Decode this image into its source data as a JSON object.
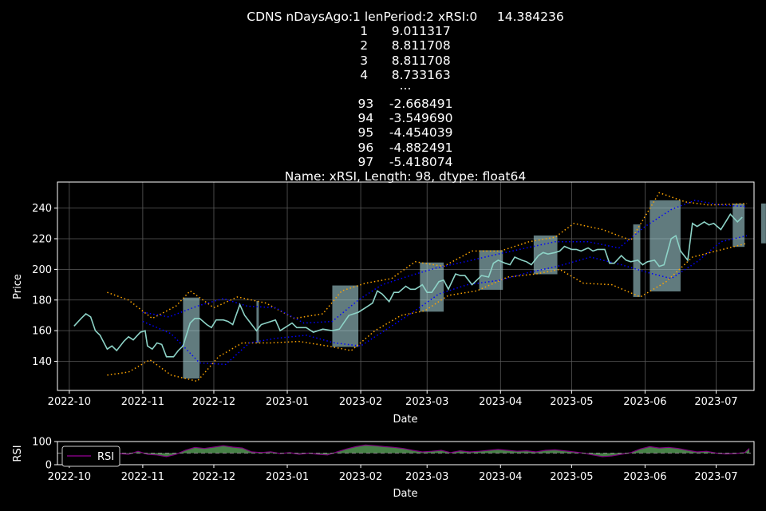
{
  "title": {
    "lines": [
      "CDNS nDaysAgo:1 lenPeriod:2 xRSI:0     14.384236",
      "1      9.011317",
      "2      8.811708",
      "3      8.811708",
      "4      8.733163",
      "...",
      "93    -2.668491",
      "94    -3.549690",
      "95    -4.454039",
      "96    -4.882491",
      "97    -5.418074",
      "Name: xRSI, Length: 98, dtype: float64"
    ]
  },
  "colors": {
    "price": "#8dd3c7",
    "band_inner": "#0000ff",
    "band_outer": "#ffa500",
    "fill": "#b0e0e6",
    "rsi_line": "#800080",
    "rsi_fill": "#4f8f4f"
  },
  "chart_data": [
    {
      "type": "line",
      "xlabel": "Date",
      "ylabel": "Price",
      "grid": true,
      "xlim": [
        "2022-09-26",
        "2023-07-17"
      ],
      "ylim": [
        121,
        257
      ],
      "x_ticks": [
        "2022-10",
        "2022-11",
        "2022-12",
        "2023-01",
        "2023-02",
        "2023-03",
        "2023-04",
        "2023-05",
        "2023-06",
        "2023-07"
      ],
      "y_ticks": [
        "140",
        "160",
        "180",
        "200",
        "220",
        "240"
      ],
      "price": [
        [
          "2022-10-03",
          163
        ],
        [
          "2022-10-06",
          168
        ],
        [
          "2022-10-08",
          171
        ],
        [
          "2022-10-10",
          169
        ],
        [
          "2022-10-12",
          160
        ],
        [
          "2022-10-14",
          157
        ],
        [
          "2022-10-17",
          148
        ],
        [
          "2022-10-19",
          150
        ],
        [
          "2022-10-21",
          147
        ],
        [
          "2022-10-24",
          153
        ],
        [
          "2022-10-26",
          156
        ],
        [
          "2022-10-28",
          154
        ],
        [
          "2022-10-31",
          159
        ],
        [
          "2022-11-02",
          160
        ],
        [
          "2022-11-03",
          150
        ],
        [
          "2022-11-05",
          148
        ],
        [
          "2022-11-07",
          152
        ],
        [
          "2022-11-09",
          151
        ],
        [
          "2022-11-11",
          143
        ],
        [
          "2022-11-14",
          143
        ],
        [
          "2022-11-16",
          147
        ],
        [
          "2022-11-18",
          150
        ],
        [
          "2022-11-21",
          165
        ],
        [
          "2022-11-23",
          168
        ],
        [
          "2022-11-25",
          168
        ],
        [
          "2022-11-28",
          164
        ],
        [
          "2022-11-30",
          162
        ],
        [
          "2022-12-02",
          167
        ],
        [
          "2022-12-05",
          167
        ],
        [
          "2022-12-07",
          166
        ],
        [
          "2022-12-09",
          164
        ],
        [
          "2022-12-12",
          177
        ],
        [
          "2022-12-14",
          170
        ],
        [
          "2022-12-16",
          166
        ],
        [
          "2022-12-19",
          160
        ],
        [
          "2022-12-21",
          164
        ],
        [
          "2022-12-23",
          165
        ],
        [
          "2022-12-27",
          167
        ],
        [
          "2022-12-29",
          160
        ],
        [
          "2023-01-03",
          165
        ],
        [
          "2023-01-05",
          162
        ],
        [
          "2023-01-09",
          162
        ],
        [
          "2023-01-12",
          159
        ],
        [
          "2023-01-16",
          161
        ],
        [
          "2023-01-20",
          160
        ],
        [
          "2023-01-23",
          161
        ],
        [
          "2023-01-27",
          170
        ],
        [
          "2023-01-31",
          172
        ],
        [
          "2023-02-03",
          175
        ],
        [
          "2023-02-06",
          178
        ],
        [
          "2023-02-08",
          186
        ],
        [
          "2023-02-10",
          184
        ],
        [
          "2023-02-13",
          179
        ],
        [
          "2023-02-15",
          185
        ],
        [
          "2023-02-17",
          185
        ],
        [
          "2023-02-20",
          189
        ],
        [
          "2023-02-22",
          187
        ],
        [
          "2023-02-24",
          187
        ],
        [
          "2023-02-27",
          190
        ],
        [
          "2023-03-01",
          185
        ],
        [
          "2023-03-03",
          185
        ],
        [
          "2023-03-06",
          192
        ],
        [
          "2023-03-08",
          193
        ],
        [
          "2023-03-10",
          187
        ],
        [
          "2023-03-13",
          197
        ],
        [
          "2023-03-15",
          196
        ],
        [
          "2023-03-17",
          196
        ],
        [
          "2023-03-20",
          190
        ],
        [
          "2023-03-22",
          193
        ],
        [
          "2023-03-24",
          196
        ],
        [
          "2023-03-27",
          195
        ],
        [
          "2023-03-29",
          204
        ],
        [
          "2023-03-31",
          206
        ],
        [
          "2023-04-03",
          204
        ],
        [
          "2023-04-05",
          203
        ],
        [
          "2023-04-07",
          208
        ],
        [
          "2023-04-10",
          206
        ],
        [
          "2023-04-12",
          205
        ],
        [
          "2023-04-14",
          203
        ],
        [
          "2023-04-17",
          209
        ],
        [
          "2023-04-19",
          211
        ],
        [
          "2023-04-21",
          210
        ],
        [
          "2023-04-24",
          211
        ],
        [
          "2023-04-26",
          212
        ],
        [
          "2023-04-28",
          215
        ],
        [
          "2023-05-01",
          213
        ],
        [
          "2023-05-03",
          213
        ],
        [
          "2023-05-05",
          212
        ],
        [
          "2023-05-08",
          214
        ],
        [
          "2023-05-10",
          212
        ],
        [
          "2023-05-12",
          213
        ],
        [
          "2023-05-15",
          213
        ],
        [
          "2023-05-17",
          204
        ],
        [
          "2023-05-19",
          204
        ],
        [
          "2023-05-22",
          209
        ],
        [
          "2023-05-24",
          206
        ],
        [
          "2023-05-26",
          205
        ],
        [
          "2023-05-29",
          206
        ],
        [
          "2023-05-31",
          203
        ],
        [
          "2023-06-02",
          205
        ],
        [
          "2023-06-05",
          206
        ],
        [
          "2023-06-07",
          202
        ],
        [
          "2023-06-09",
          203
        ],
        [
          "2023-06-12",
          220
        ],
        [
          "2023-06-14",
          222
        ],
        [
          "2023-06-16",
          212
        ],
        [
          "2023-06-19",
          206
        ],
        [
          "2023-06-21",
          230
        ],
        [
          "2023-06-23",
          228
        ],
        [
          "2023-06-26",
          231
        ],
        [
          "2023-06-28",
          229
        ],
        [
          "2023-06-30",
          230
        ],
        [
          "2023-07-03",
          226
        ],
        [
          "2023-07-05",
          231
        ],
        [
          "2023-07-07",
          236
        ],
        [
          "2023-07-10",
          231
        ],
        [
          "2023-07-12",
          234
        ]
      ],
      "inner_upper": [
        [
          "2022-11-01",
          172
        ],
        [
          "2022-11-12",
          169
        ],
        [
          "2022-11-24",
          176
        ],
        [
          "2022-12-05",
          181
        ],
        [
          "2022-12-15",
          176
        ],
        [
          "2022-12-27",
          175
        ],
        [
          "2023-01-08",
          165
        ],
        [
          "2023-01-20",
          166
        ],
        [
          "2023-01-31",
          180
        ],
        [
          "2023-02-10",
          190
        ],
        [
          "2023-02-22",
          196
        ],
        [
          "2023-03-05",
          201
        ],
        [
          "2023-03-17",
          205
        ],
        [
          "2023-03-31",
          210
        ],
        [
          "2023-04-12",
          214
        ],
        [
          "2023-04-24",
          218
        ],
        [
          "2023-05-08",
          218
        ],
        [
          "2023-05-21",
          214
        ],
        [
          "2023-06-01",
          228
        ],
        [
          "2023-06-12",
          239
        ],
        [
          "2023-06-22",
          245
        ],
        [
          "2023-07-03",
          242
        ],
        [
          "2023-07-14",
          241
        ]
      ],
      "inner_lower": [
        [
          "2022-11-01",
          166
        ],
        [
          "2022-11-13",
          158
        ],
        [
          "2022-11-25",
          139
        ],
        [
          "2022-12-06",
          138
        ],
        [
          "2022-12-16",
          152
        ],
        [
          "2022-12-27",
          155
        ],
        [
          "2023-01-09",
          157
        ],
        [
          "2023-01-21",
          152
        ],
        [
          "2023-02-01",
          150
        ],
        [
          "2023-02-11",
          160
        ],
        [
          "2023-02-23",
          172
        ],
        [
          "2023-03-06",
          184
        ],
        [
          "2023-03-18",
          190
        ],
        [
          "2023-04-01",
          193
        ],
        [
          "2023-04-13",
          198
        ],
        [
          "2023-04-25",
          202
        ],
        [
          "2023-05-09",
          208
        ],
        [
          "2023-05-22",
          203
        ],
        [
          "2023-06-02",
          198
        ],
        [
          "2023-06-12",
          194
        ],
        [
          "2023-06-23",
          205
        ],
        [
          "2023-07-03",
          218
        ],
        [
          "2023-07-14",
          222
        ]
      ],
      "outer_upper": [
        [
          "2022-10-17",
          185
        ],
        [
          "2022-10-26",
          180
        ],
        [
          "2022-11-05",
          168
        ],
        [
          "2022-11-15",
          176
        ],
        [
          "2022-11-21",
          186
        ],
        [
          "2022-12-01",
          175
        ],
        [
          "2022-12-11",
          182
        ],
        [
          "2022-12-23",
          178
        ],
        [
          "2023-01-04",
          168
        ],
        [
          "2023-01-16",
          171
        ],
        [
          "2023-01-24",
          186
        ],
        [
          "2023-02-03",
          191
        ],
        [
          "2023-02-14",
          194
        ],
        [
          "2023-02-24",
          205
        ],
        [
          "2023-03-08",
          202
        ],
        [
          "2023-03-20",
          212
        ],
        [
          "2023-04-01",
          212
        ],
        [
          "2023-04-13",
          218
        ],
        [
          "2023-04-24",
          221
        ],
        [
          "2023-05-02",
          230
        ],
        [
          "2023-05-14",
          226
        ],
        [
          "2023-05-26",
          219
        ],
        [
          "2023-06-07",
          250
        ],
        [
          "2023-06-18",
          244
        ],
        [
          "2023-06-28",
          242
        ],
        [
          "2023-07-14",
          243
        ]
      ],
      "outer_lower": [
        [
          "2022-10-17",
          131
        ],
        [
          "2022-10-26",
          133
        ],
        [
          "2022-11-04",
          141
        ],
        [
          "2022-11-13",
          131
        ],
        [
          "2022-11-24",
          127
        ],
        [
          "2022-12-03",
          143
        ],
        [
          "2022-12-13",
          152
        ],
        [
          "2022-12-25",
          152
        ],
        [
          "2023-01-06",
          153
        ],
        [
          "2023-01-18",
          150
        ],
        [
          "2023-01-28",
          147
        ],
        [
          "2023-02-07",
          160
        ],
        [
          "2023-02-18",
          170
        ],
        [
          "2023-02-28",
          173
        ],
        [
          "2023-03-10",
          183
        ],
        [
          "2023-03-22",
          186
        ],
        [
          "2023-04-04",
          195
        ],
        [
          "2023-04-16",
          197
        ],
        [
          "2023-04-26",
          200
        ],
        [
          "2023-05-06",
          191
        ],
        [
          "2023-05-18",
          190
        ],
        [
          "2023-05-30",
          182
        ],
        [
          "2023-06-10",
          192
        ],
        [
          "2023-06-21",
          208
        ],
        [
          "2023-07-01",
          212
        ],
        [
          "2023-07-14",
          217
        ]
      ],
      "shaded_ranges": [
        [
          "2022-11-18",
          "2022-11-25"
        ],
        [
          "2022-12-19",
          "2022-12-20"
        ],
        [
          "2023-01-20",
          "2023-01-31"
        ],
        [
          "2023-02-26",
          "2023-03-08"
        ],
        [
          "2023-03-23",
          "2023-04-02"
        ],
        [
          "2023-04-15",
          "2023-04-25"
        ],
        [
          "2023-05-27",
          "2023-05-30"
        ],
        [
          "2023-06-03",
          "2023-06-16"
        ],
        [
          "2023-07-08",
          "2023-07-13"
        ],
        [
          "2023-07-20",
          "2023-07-22"
        ]
      ]
    },
    {
      "type": "area",
      "xlabel": "Date",
      "ylabel": "RSI",
      "ylim": [
        0,
        100
      ],
      "y_ticks": [
        "0",
        "100"
      ],
      "x_ticks": [
        "2022-10",
        "2022-11",
        "2022-12",
        "2023-01",
        "2023-02",
        "2023-03",
        "2023-04",
        "2023-05",
        "2023-06",
        "2023-07"
      ],
      "reference_level": 50,
      "legend": {
        "position": "top-left",
        "entries": [
          "RSI"
        ]
      },
      "rsi": [
        [
          "2022-10-18",
          52
        ],
        [
          "2022-10-22",
          48
        ],
        [
          "2022-10-26",
          45
        ],
        [
          "2022-10-30",
          58
        ],
        [
          "2022-11-03",
          45
        ],
        [
          "2022-11-07",
          42
        ],
        [
          "2022-11-11",
          35
        ],
        [
          "2022-11-15",
          45
        ],
        [
          "2022-11-19",
          62
        ],
        [
          "2022-11-23",
          75
        ],
        [
          "2022-11-27",
          70
        ],
        [
          "2022-12-01",
          76
        ],
        [
          "2022-12-05",
          82
        ],
        [
          "2022-12-09",
          76
        ],
        [
          "2022-12-13",
          72
        ],
        [
          "2022-12-17",
          55
        ],
        [
          "2022-12-21",
          52
        ],
        [
          "2022-12-25",
          56
        ],
        [
          "2022-12-29",
          48
        ],
        [
          "2023-01-02",
          52
        ],
        [
          "2023-01-06",
          45
        ],
        [
          "2023-01-10",
          50
        ],
        [
          "2023-01-14",
          45
        ],
        [
          "2023-01-18",
          42
        ],
        [
          "2023-01-22",
          55
        ],
        [
          "2023-01-26",
          68
        ],
        [
          "2023-01-30",
          78
        ],
        [
          "2023-02-03",
          85
        ],
        [
          "2023-02-07",
          82
        ],
        [
          "2023-02-11",
          78
        ],
        [
          "2023-02-15",
          75
        ],
        [
          "2023-02-19",
          70
        ],
        [
          "2023-02-23",
          62
        ],
        [
          "2023-02-27",
          55
        ],
        [
          "2023-03-03",
          58
        ],
        [
          "2023-03-07",
          62
        ],
        [
          "2023-03-11",
          52
        ],
        [
          "2023-03-15",
          60
        ],
        [
          "2023-03-19",
          55
        ],
        [
          "2023-03-23",
          58
        ],
        [
          "2023-03-27",
          62
        ],
        [
          "2023-03-31",
          66
        ],
        [
          "2023-04-04",
          62
        ],
        [
          "2023-04-08",
          58
        ],
        [
          "2023-04-12",
          60
        ],
        [
          "2023-04-16",
          55
        ],
        [
          "2023-04-20",
          62
        ],
        [
          "2023-04-24",
          64
        ],
        [
          "2023-04-28",
          60
        ],
        [
          "2023-05-02",
          55
        ],
        [
          "2023-05-06",
          50
        ],
        [
          "2023-05-10",
          42
        ],
        [
          "2023-05-14",
          35
        ],
        [
          "2023-05-18",
          38
        ],
        [
          "2023-05-22",
          45
        ],
        [
          "2023-05-26",
          52
        ],
        [
          "2023-05-30",
          68
        ],
        [
          "2023-06-03",
          78
        ],
        [
          "2023-06-07",
          72
        ],
        [
          "2023-06-11",
          75
        ],
        [
          "2023-06-15",
          70
        ],
        [
          "2023-06-19",
          62
        ],
        [
          "2023-06-23",
          55
        ],
        [
          "2023-06-27",
          58
        ],
        [
          "2023-07-01",
          50
        ],
        [
          "2023-07-05",
          46
        ],
        [
          "2023-07-09",
          48
        ],
        [
          "2023-07-13",
          52
        ],
        [
          "2023-07-15",
          70
        ]
      ]
    }
  ]
}
